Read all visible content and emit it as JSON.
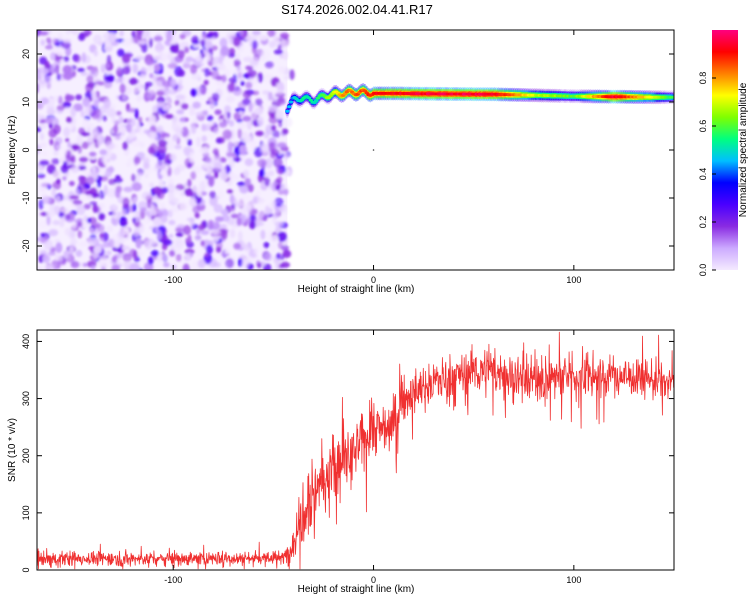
{
  "figure": {
    "title": "S174.2026.002.04.41.R17"
  },
  "chart_data": [
    {
      "type": "heatmap",
      "title": "S174.2026.002.04.41.R17",
      "xlabel": "Height of straight line (km)",
      "ylabel": "Frequency (Hz)",
      "xlim": [
        -168,
        150
      ],
      "ylim": [
        -25,
        25
      ],
      "xticks": [
        -100,
        0,
        100
      ],
      "xtick_labels": [
        "-100",
        "0",
        "100"
      ],
      "yticks": [
        -20,
        -10,
        0,
        10,
        20
      ],
      "ytick_labels": [
        "-20",
        "-10",
        "0",
        "10",
        "20"
      ],
      "noise_region_x": [
        -168,
        -43
      ],
      "signal_line": {
        "x": [
          -43,
          -40,
          -35,
          -30,
          -25,
          -20,
          -15,
          -10,
          -5,
          0,
          10,
          30,
          60,
          80,
          100,
          120,
          140,
          150
        ],
        "frequency": [
          8.5,
          10.5,
          10.8,
          10.3,
          11.2,
          11.6,
          11.8,
          12.0,
          12.0,
          11.8,
          11.8,
          11.7,
          11.6,
          11.4,
          11.2,
          11.1,
          11.0,
          11.0
        ],
        "amplitude": [
          0.45,
          0.45,
          0.55,
          0.5,
          0.6,
          0.7,
          0.8,
          0.85,
          0.85,
          0.9,
          0.92,
          0.95,
          0.95,
          0.7,
          0.6,
          0.95,
          0.7,
          0.55
        ]
      },
      "colorbar": {
        "label": "Normalized spectral amplitude",
        "range": [
          0,
          1
        ],
        "ticks": [
          0.0,
          0.2,
          0.4,
          0.6,
          0.8
        ],
        "tick_labels": [
          "0.0",
          "0.2",
          "0.4",
          "0.6",
          "0.8"
        ],
        "colors": [
          "#f4eaff",
          "#ccaaff",
          "#8a2be2",
          "#4a00ff",
          "#0000ff",
          "#00bfff",
          "#00ff80",
          "#7fff00",
          "#ffff00",
          "#ff8000",
          "#ff0000",
          "#ff007f"
        ]
      },
      "grid": false
    },
    {
      "type": "line",
      "xlabel": "Height of straight line (km)",
      "ylabel": "SNR (10 * v/v)",
      "xlim": [
        -168,
        150
      ],
      "ylim": [
        0,
        420
      ],
      "xticks": [
        -100,
        0,
        100
      ],
      "xtick_labels": [
        "-100",
        "0",
        "100"
      ],
      "yticks": [
        0,
        100,
        200,
        300,
        400
      ],
      "ytick_labels": [
        "0",
        "100",
        "200",
        "300",
        "400"
      ],
      "series": [
        {
          "name": "SNR",
          "color": "#f03030",
          "x": [
            -168,
            -100,
            -45,
            -40,
            -35,
            -30,
            -25,
            -20,
            -15,
            -10,
            -5,
            0,
            5,
            10,
            15,
            20,
            25,
            30,
            40,
            50,
            60,
            80,
            100,
            120,
            140,
            150
          ],
          "mean": [
            20,
            20,
            21,
            45,
            120,
            140,
            160,
            170,
            190,
            200,
            230,
            250,
            245,
            260,
            300,
            310,
            320,
            330,
            340,
            350,
            345,
            335,
            340,
            340,
            335,
            325
          ],
          "spread": [
            12,
            12,
            12,
            30,
            80,
            70,
            60,
            60,
            55,
            50,
            50,
            45,
            45,
            45,
            40,
            35,
            35,
            35,
            35,
            40,
            40,
            40,
            40,
            35,
            35,
            35
          ]
        }
      ],
      "grid": false
    }
  ]
}
